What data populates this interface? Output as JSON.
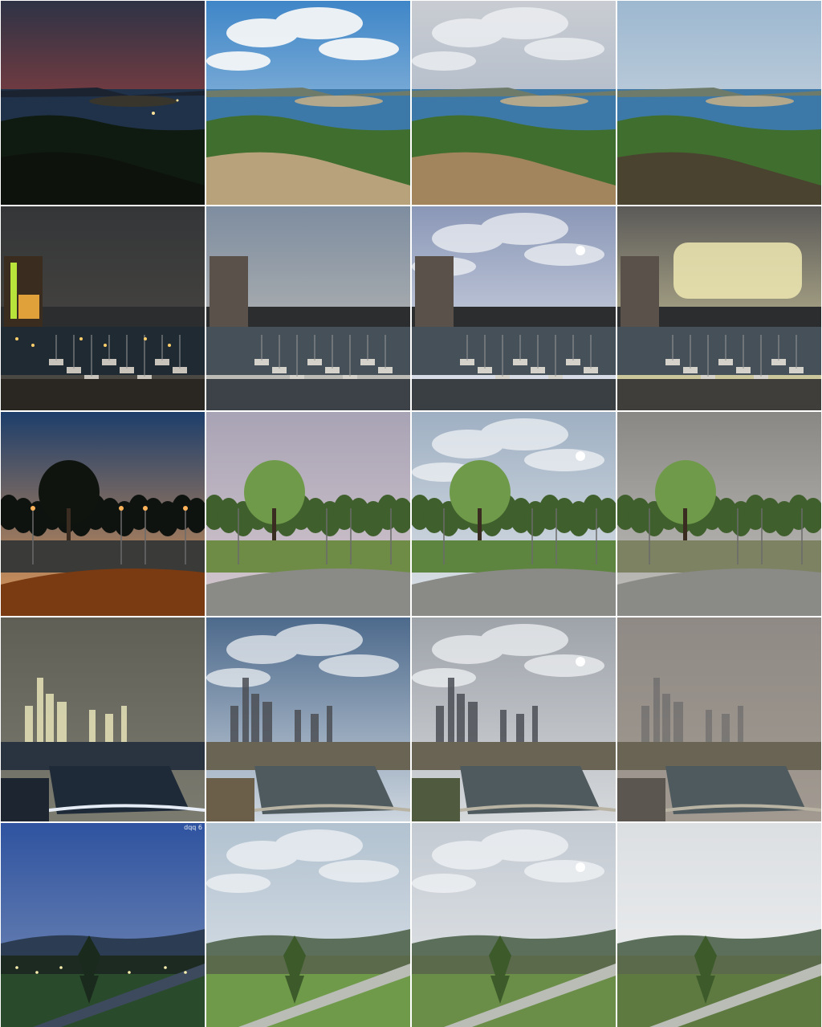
{
  "rows": [
    {
      "scene": "coastal-overlook",
      "tiles": [
        {
          "style": "night",
          "sky_top": "#2e3346",
          "sky_bottom": "#c2453b",
          "ground": "#0e120c"
        },
        {
          "style": "sunny",
          "sky_top": "#3f86c8",
          "sky_bottom": "#b9d3e6",
          "ground": "#b7a27c"
        },
        {
          "style": "overcast",
          "sky_top": "#c9ccd2",
          "sky_bottom": "#9fb0c4",
          "ground": "#a2845d"
        },
        {
          "style": "hazy",
          "sky_top": "#9db8d0",
          "sky_bottom": "#d7dde3",
          "ground": "#4a4330"
        }
      ]
    },
    {
      "scene": "harbor-marina",
      "tiles": [
        {
          "style": "night",
          "sky_top": "#343638",
          "sky_bottom": "#4f4b45",
          "ground": "#2a2622"
        },
        {
          "style": "dusk",
          "sky_top": "#7e8da0",
          "sky_bottom": "#c8c4ba",
          "ground": "#3d4248"
        },
        {
          "style": "cloudy",
          "sky_top": "#8a97b7",
          "sky_bottom": "#e6e9f0",
          "ground": "#3a3f44"
        },
        {
          "style": "storm",
          "sky_top": "#5b5a58",
          "sky_bottom": "#e2dba9",
          "ground": "#403e3a"
        }
      ]
    },
    {
      "scene": "park-field",
      "tiles": [
        {
          "style": "night",
          "sky_top": "#1d3e6b",
          "sky_bottom": "#e39a57",
          "ground": "#2c1d12"
        },
        {
          "style": "pastel",
          "sky_top": "#a8a3b5",
          "sky_bottom": "#d7c9cf",
          "ground": "#6f8c47"
        },
        {
          "style": "bright",
          "sky_top": "#9fb0c3",
          "sky_bottom": "#dfe4e8",
          "ground": "#5e8540"
        },
        {
          "style": "winter",
          "sky_top": "#8a8885",
          "sky_bottom": "#c3c1bd",
          "ground": "#7d8262"
        }
      ]
    },
    {
      "scene": "city-skyline-river",
      "tiles": [
        {
          "style": "fog-night",
          "sky_top": "#5f5f56",
          "sky_bottom": "#7b7b70",
          "ground": "#1c2530"
        },
        {
          "style": "day",
          "sky_top": "#4d6a8c",
          "sky_bottom": "#cdd6df",
          "ground": "#6c5f49"
        },
        {
          "style": "cloudy",
          "sky_top": "#9ea3aa",
          "sky_bottom": "#d6d9dc",
          "ground": "#4f5a3e"
        },
        {
          "style": "fog-day",
          "sky_top": "#8f8a85",
          "sky_bottom": "#a29a91",
          "ground": "#5c5650"
        }
      ]
    },
    {
      "scene": "hillside-road",
      "watermark": "dqq 6",
      "tiles": [
        {
          "style": "blue-hour",
          "sky_top": "#2f53a0",
          "sky_bottom": "#7c90b8",
          "ground": "#2a4a2c"
        },
        {
          "style": "overcast",
          "sky_top": "#b2c2d0",
          "sky_bottom": "#dee4ea",
          "ground": "#6f9a4a"
        },
        {
          "style": "cloudy",
          "sky_top": "#c3cad2",
          "sky_bottom": "#e6e8ea",
          "ground": "#6a8e48"
        },
        {
          "style": "white-sky",
          "sky_top": "#dcdfe2",
          "sky_bottom": "#eef0f1",
          "ground": "#5e7a40"
        }
      ]
    }
  ]
}
